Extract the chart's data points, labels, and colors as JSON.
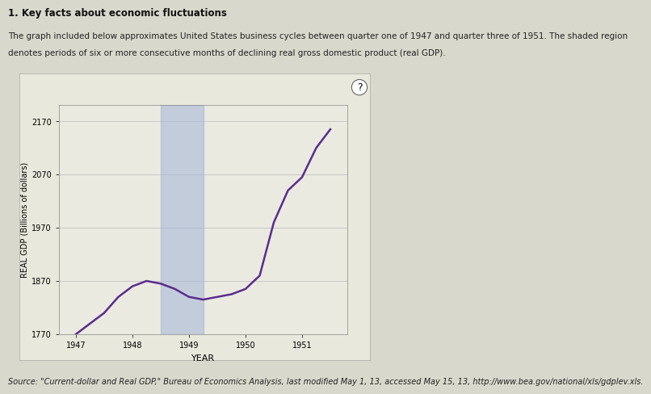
{
  "title": "1. Key facts about economic fluctuations",
  "description_line1": "The graph included below approximates United States business cycles between quarter one of 1947 and quarter three of 1951. The shaded region",
  "description_line2": "denotes periods of six or more consecutive months of declining real gross domestic product (real GDP).",
  "ylabel": "REAL GDP (Billions of dollars)",
  "xlabel": "YEAR",
  "source": "Source: \"Current-dollar and Real GDP,\" Bureau of Economics Analysis, last modified May 1, 13, accessed May 15, 13, http://www.bea.gov/national/xls/gdplev.xls.",
  "years": [
    1947.0,
    1947.25,
    1947.5,
    1947.75,
    1948.0,
    1948.25,
    1948.5,
    1948.75,
    1949.0,
    1949.25,
    1949.5,
    1949.75,
    1950.0,
    1950.25,
    1950.5,
    1950.75,
    1951.0,
    1951.25,
    1951.5
  ],
  "gdp": [
    1770,
    1790,
    1810,
    1840,
    1860,
    1870,
    1865,
    1855,
    1840,
    1835,
    1840,
    1845,
    1855,
    1880,
    1980,
    2040,
    2065,
    2120,
    2155
  ],
  "shade_xmin": 1948.5,
  "shade_xmax": 1949.25,
  "ylim": [
    1770,
    2200
  ],
  "yticks": [
    1770,
    1870,
    1970,
    2070,
    2170
  ],
  "xticks": [
    1947,
    1948,
    1949,
    1950,
    1951
  ],
  "xlim_min": 1946.7,
  "xlim_max": 1951.8,
  "line_color": "#5B2C8D",
  "shade_color": "#A8B8D8",
  "shade_alpha": 0.6,
  "page_bg_color": "#D8D8CC",
  "chart_outer_bg": "#E8E8DC",
  "plot_bg_color": "#EAEAE0",
  "line_width": 1.8,
  "question_mark": "?",
  "title_fontsize": 8.5,
  "desc_fontsize": 7.5,
  "source_fontsize": 7.0,
  "ylabel_fontsize": 7,
  "xlabel_fontsize": 8,
  "tick_fontsize": 7
}
